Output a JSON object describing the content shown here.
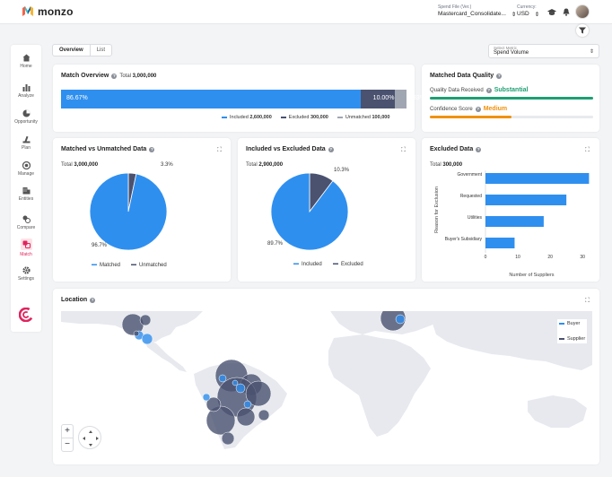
{
  "app": {
    "brand": "monzo"
  },
  "header": {
    "spend_file_label": "Spend File (Ver.)",
    "spend_file_value": "Mastercard_Consolidate...",
    "currency_label": "Currency:",
    "currency_value": "USD",
    "icons": [
      "graduation-cap-icon",
      "bell-icon"
    ]
  },
  "sidebar": {
    "items": [
      {
        "label": "Home",
        "icon": "home-icon"
      },
      {
        "label": "Analyze",
        "icon": "bar-chart-icon"
      },
      {
        "label": "Opportunity",
        "icon": "pie-chart-icon"
      },
      {
        "label": "Plan",
        "icon": "plan-icon"
      },
      {
        "label": "Manage",
        "icon": "target-icon"
      },
      {
        "label": "Entities",
        "icon": "building-icon"
      },
      {
        "label": "Compare",
        "icon": "compare-icon"
      },
      {
        "label": "Match",
        "icon": "match-icon",
        "active": true
      },
      {
        "label": "Settings",
        "icon": "gear-icon"
      }
    ]
  },
  "tabs": [
    {
      "label": "Overview",
      "active": true
    },
    {
      "label": "List",
      "active": false
    }
  ],
  "metric_select": {
    "label": "Select Metric",
    "value": "Spend Volume"
  },
  "colors": {
    "blue": "#2f8fef",
    "navy": "#4a5270",
    "gray": "#a0a6b2",
    "green": "#1e9e74",
    "orange": "#f0920b",
    "accent": "#e0245e"
  },
  "match_overview": {
    "title": "Match Overview",
    "total_label": "Total",
    "total_value": "3,000,000",
    "segments": [
      {
        "label": "86.67%",
        "fraction": 0.8667,
        "color": "#2f8fef"
      },
      {
        "label": "10.00%",
        "fraction": 0.1,
        "color": "#4a5270"
      },
      {
        "label": "3.33%",
        "fraction": 0.0333,
        "color": "#a0a6b2"
      }
    ],
    "legend": [
      {
        "name": "Included",
        "value": "2,600,000",
        "color": "#2f8fef"
      },
      {
        "name": "Excluded",
        "value": "300,000",
        "color": "#4a5270"
      },
      {
        "name": "Unmatched",
        "value": "100,000",
        "color": "#a0a6b2"
      }
    ]
  },
  "matched_data_quality": {
    "title": "Matched Data Quality",
    "received_label": "Quality Data Received",
    "received_value": "Substantial",
    "received_fraction": 1.0,
    "confidence_label": "Confidence Score",
    "confidence_value": "Medium",
    "confidence_fraction": 0.5
  },
  "chart_data": [
    {
      "type": "pie",
      "title": "Matched vs Unmatched Data",
      "total_label": "Total",
      "total_value": "3,000,000",
      "slices": [
        {
          "name": "Matched",
          "value": 96.7,
          "label": "96.7%",
          "color": "#2f8fef"
        },
        {
          "name": "Unmatched",
          "value": 3.3,
          "label": "3.3%",
          "color": "#4a5270"
        }
      ]
    },
    {
      "type": "pie",
      "title": "Included vs Excluded Data",
      "total_label": "Total",
      "total_value": "2,900,000",
      "slices": [
        {
          "name": "Included",
          "value": 89.7,
          "label": "89.7%",
          "color": "#2f8fef"
        },
        {
          "name": "Excluded",
          "value": 10.3,
          "label": "10.3%",
          "color": "#4a5270"
        }
      ]
    },
    {
      "type": "bar",
      "orientation": "horizontal",
      "title": "Excluded Data",
      "total_label": "Total",
      "total_value": "300,000",
      "categories": [
        "Government",
        "Requested",
        "Utilities",
        "Buyer's Subsidiary"
      ],
      "values": [
        32,
        25,
        18,
        9
      ],
      "xlabel": "Number of Suppliers",
      "ylabel": "Reason for Exclusion",
      "xticks": [
        0,
        10,
        20,
        30
      ],
      "xlim": [
        0,
        33
      ],
      "color": "#2f8fef"
    }
  ],
  "location": {
    "title": "Location",
    "legend": [
      {
        "name": "Buyer",
        "color": "#2f8fef"
      },
      {
        "name": "Supplier",
        "color": "#4a5270"
      }
    ],
    "zoom_in": "+",
    "zoom_out": "−"
  }
}
